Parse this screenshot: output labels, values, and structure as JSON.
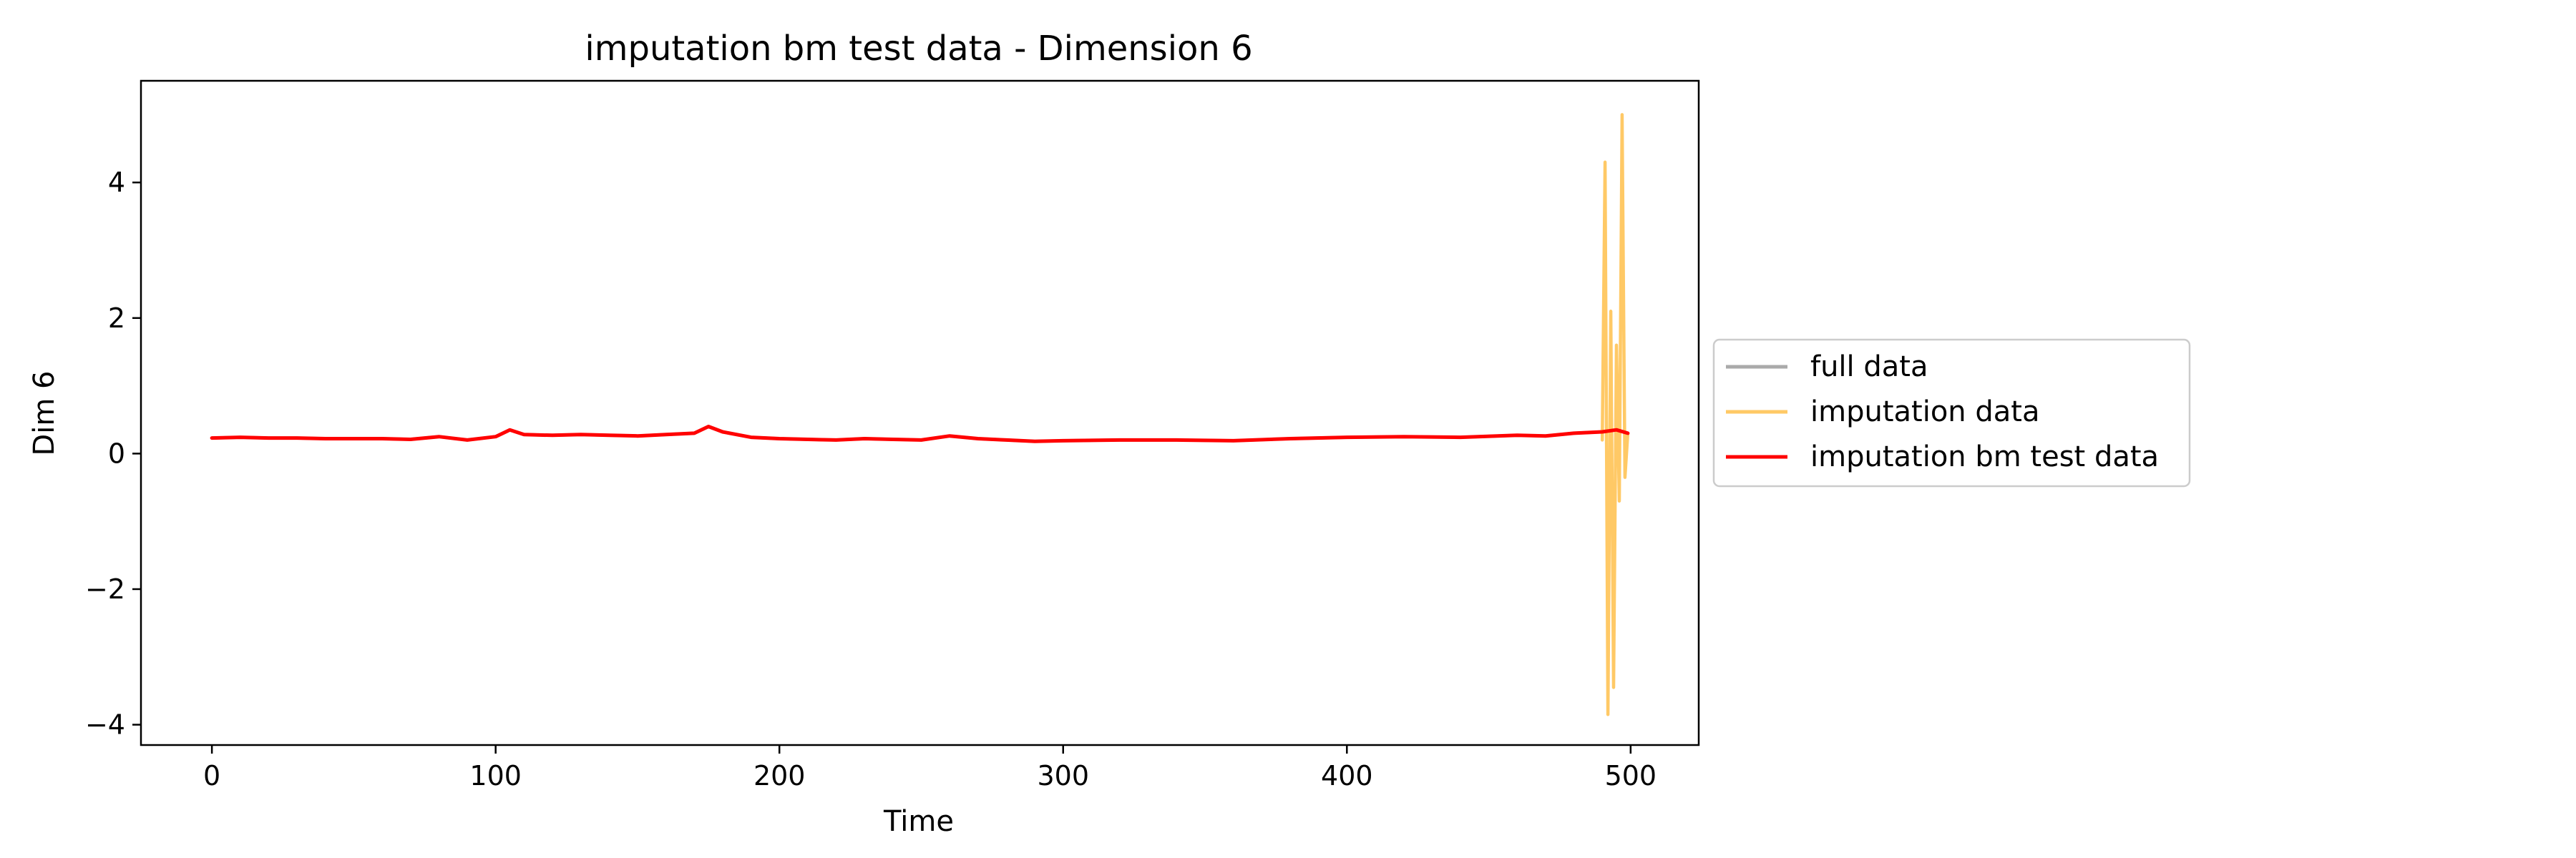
{
  "chart_data": {
    "type": "line",
    "title": "imputation bm test data - Dimension 6",
    "xlabel": "Time",
    "ylabel": "Dim 6",
    "xlim": [
      -25,
      524
    ],
    "ylim": [
      -4.3,
      5.5
    ],
    "xticks": [
      0,
      100,
      200,
      300,
      400,
      500
    ],
    "xtick_labels": [
      "0",
      "100",
      "200",
      "300",
      "400",
      "500"
    ],
    "yticks": [
      -4,
      -2,
      0,
      2,
      4
    ],
    "ytick_labels": [
      "−4",
      "−2",
      "0",
      "2",
      "4"
    ],
    "grid": false,
    "legend_position": "right, outside the axes",
    "series": [
      {
        "name": "full data",
        "color": "#aaaaaa",
        "x": [
          0,
          10,
          20,
          30,
          40,
          50,
          60,
          70,
          80,
          90,
          100,
          105,
          110,
          120,
          130,
          140,
          150,
          160,
          170,
          175,
          180,
          190,
          200,
          210,
          220,
          230,
          240,
          250,
          260,
          270,
          280,
          290,
          300,
          320,
          340,
          360,
          380,
          400,
          420,
          440,
          460,
          470,
          480,
          490,
          495,
          499
        ],
        "y": [
          0.23,
          0.24,
          0.23,
          0.23,
          0.22,
          0.22,
          0.22,
          0.21,
          0.25,
          0.2,
          0.25,
          0.35,
          0.28,
          0.27,
          0.28,
          0.27,
          0.26,
          0.28,
          0.3,
          0.4,
          0.32,
          0.24,
          0.22,
          0.21,
          0.2,
          0.22,
          0.21,
          0.2,
          0.26,
          0.22,
          0.2,
          0.18,
          0.19,
          0.2,
          0.2,
          0.19,
          0.22,
          0.24,
          0.25,
          0.24,
          0.27,
          0.26,
          0.3,
          0.32,
          0.35,
          0.3
        ]
      },
      {
        "name": "imputation data",
        "color": "#ffc966",
        "x": [
          490,
          491,
          492,
          493,
          494,
          495,
          496,
          497,
          498,
          499
        ],
        "y": [
          0.2,
          4.3,
          -3.85,
          2.1,
          -3.45,
          1.6,
          -0.7,
          5.0,
          -0.35,
          0.3
        ]
      },
      {
        "name": "imputation bm test data",
        "color": "#ff0000",
        "x": [
          0,
          10,
          20,
          30,
          40,
          50,
          60,
          70,
          80,
          90,
          100,
          105,
          110,
          120,
          130,
          140,
          150,
          160,
          170,
          175,
          180,
          190,
          200,
          210,
          220,
          230,
          240,
          250,
          260,
          270,
          280,
          290,
          300,
          320,
          340,
          360,
          380,
          400,
          420,
          440,
          460,
          470,
          480,
          490,
          495,
          499
        ],
        "y": [
          0.23,
          0.24,
          0.23,
          0.23,
          0.22,
          0.22,
          0.22,
          0.21,
          0.25,
          0.2,
          0.25,
          0.35,
          0.28,
          0.27,
          0.28,
          0.27,
          0.26,
          0.28,
          0.3,
          0.4,
          0.32,
          0.24,
          0.22,
          0.21,
          0.2,
          0.22,
          0.21,
          0.2,
          0.26,
          0.22,
          0.2,
          0.18,
          0.19,
          0.2,
          0.2,
          0.19,
          0.22,
          0.24,
          0.25,
          0.24,
          0.27,
          0.26,
          0.3,
          0.32,
          0.35,
          0.3
        ]
      }
    ]
  }
}
